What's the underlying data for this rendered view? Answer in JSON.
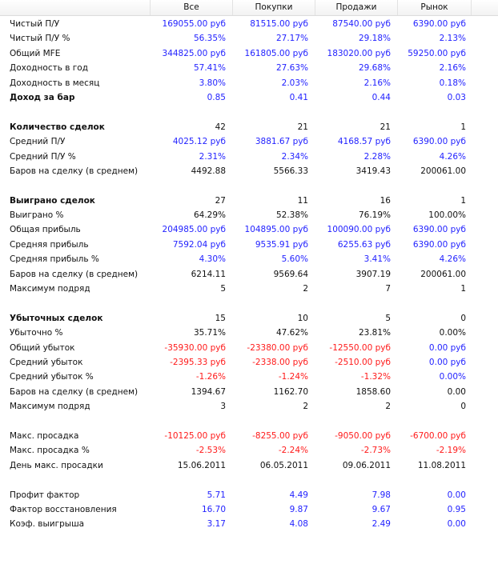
{
  "columns": [
    "",
    "Все",
    "Покупки",
    "Продажи",
    "Рынок"
  ],
  "colors": {
    "b": "#2222ff",
    "r": "#ff1a1a",
    "k": "#111111"
  },
  "rows": [
    {
      "label": "Чистый П/У",
      "c": "b",
      "values": [
        "169055.00 руб",
        "81515.00 руб",
        "87540.00 руб",
        "6390.00 руб"
      ]
    },
    {
      "label": "Чистый П/У %",
      "c": "b",
      "values": [
        "56.35%",
        "27.17%",
        "29.18%",
        "2.13%"
      ]
    },
    {
      "label": "Общий MFE",
      "c": "b",
      "values": [
        "344825.00 руб",
        "161805.00 руб",
        "183020.00 руб",
        "59250.00 руб"
      ]
    },
    {
      "label": "Доходность в год",
      "c": "b",
      "values": [
        "57.41%",
        "27.63%",
        "29.68%",
        "2.16%"
      ]
    },
    {
      "label": "Доходность в месяц",
      "c": "b",
      "values": [
        "3.80%",
        "2.03%",
        "2.16%",
        "0.18%"
      ]
    },
    {
      "label": "Доход за бар",
      "bold": true,
      "c": "b",
      "values": [
        "0.85",
        "0.41",
        "0.44",
        "0.03"
      ]
    },
    null,
    {
      "label": "Количество сделок",
      "bold": true,
      "c": "k",
      "values": [
        "42",
        "21",
        "21",
        "1"
      ]
    },
    {
      "label": "Средний П/У",
      "c": "b",
      "values": [
        "4025.12 руб",
        "3881.67 руб",
        "4168.57 руб",
        "6390.00 руб"
      ]
    },
    {
      "label": "Средний П/У %",
      "c": "b",
      "values": [
        "2.31%",
        "2.34%",
        "2.28%",
        "4.26%"
      ]
    },
    {
      "label": "Баров на сделку (в среднем)",
      "c": "k",
      "values": [
        "4492.88",
        "5566.33",
        "3419.43",
        "200061.00"
      ]
    },
    null,
    {
      "label": "Выиграно сделок",
      "bold": true,
      "c": "k",
      "values": [
        "27",
        "11",
        "16",
        "1"
      ]
    },
    {
      "label": "Выиграно %",
      "c": "k",
      "values": [
        "64.29%",
        "52.38%",
        "76.19%",
        "100.00%"
      ]
    },
    {
      "label": "Общая прибыль",
      "c": "b",
      "values": [
        "204985.00 руб",
        "104895.00 руб",
        "100090.00 руб",
        "6390.00 руб"
      ]
    },
    {
      "label": "Средняя прибыль",
      "c": "b",
      "values": [
        "7592.04 руб",
        "9535.91 руб",
        "6255.63 руб",
        "6390.00 руб"
      ]
    },
    {
      "label": "Средняя прибыль %",
      "c": "b",
      "values": [
        "4.30%",
        "5.60%",
        "3.41%",
        "4.26%"
      ]
    },
    {
      "label": "Баров на сделку (в среднем)",
      "c": "k",
      "values": [
        "6214.11",
        "9569.64",
        "3907.19",
        "200061.00"
      ]
    },
    {
      "label": "Максимум подряд",
      "c": "k",
      "values": [
        "5",
        "2",
        "7",
        "1"
      ]
    },
    null,
    {
      "label": "Убыточных сделок",
      "bold": true,
      "c": "k",
      "values": [
        "15",
        "10",
        "5",
        "0"
      ]
    },
    {
      "label": "Убыточно %",
      "c": "k",
      "values": [
        "35.71%",
        "47.62%",
        "23.81%",
        "0.00%"
      ]
    },
    {
      "label": "Общий убыток",
      "cs": [
        "r",
        "r",
        "r",
        "b"
      ],
      "values": [
        "-35930.00 руб",
        "-23380.00 руб",
        "-12550.00 руб",
        "0.00 руб"
      ]
    },
    {
      "label": "Средний убыток",
      "cs": [
        "r",
        "r",
        "r",
        "b"
      ],
      "values": [
        "-2395.33 руб",
        "-2338.00 руб",
        "-2510.00 руб",
        "0.00 руб"
      ]
    },
    {
      "label": "Средний убыток %",
      "cs": [
        "r",
        "r",
        "r",
        "b"
      ],
      "values": [
        "-1.26%",
        "-1.24%",
        "-1.32%",
        "0.00%"
      ]
    },
    {
      "label": "Баров на сделку (в среднем)",
      "c": "k",
      "values": [
        "1394.67",
        "1162.70",
        "1858.60",
        "0.00"
      ]
    },
    {
      "label": "Максимум подряд",
      "c": "k",
      "values": [
        "3",
        "2",
        "2",
        "0"
      ]
    },
    null,
    {
      "label": "Макс. просадка",
      "c": "r",
      "values": [
        "-10125.00 руб",
        "-8255.00 руб",
        "-9050.00 руб",
        "-6700.00 руб"
      ]
    },
    {
      "label": "Макс. просадка %",
      "c": "r",
      "values": [
        "-2.53%",
        "-2.24%",
        "-2.73%",
        "-2.19%"
      ]
    },
    {
      "label": "День макс. просадки",
      "c": "k",
      "values": [
        "15.06.2011",
        "06.05.2011",
        "09.06.2011",
        "11.08.2011"
      ]
    },
    null,
    {
      "label": "Профит фактор",
      "c": "b",
      "values": [
        "5.71",
        "4.49",
        "7.98",
        "0.00"
      ]
    },
    {
      "label": "Фактор восстановления",
      "c": "b",
      "values": [
        "16.70",
        "9.87",
        "9.67",
        "0.95"
      ]
    },
    {
      "label": "Коэф. выигрыша",
      "c": "b",
      "values": [
        "3.17",
        "4.08",
        "2.49",
        "0.00"
      ]
    }
  ]
}
